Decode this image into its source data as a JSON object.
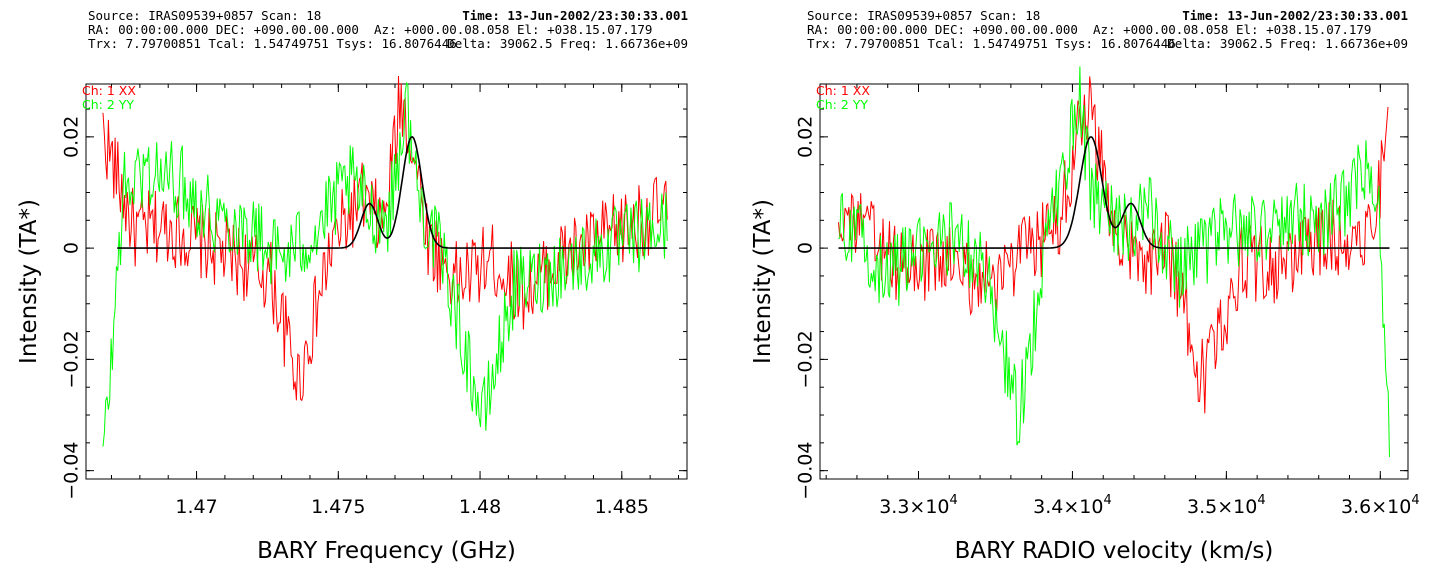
{
  "panels": [
    {
      "header": {
        "line1_left": "Source: IRAS09539+0857 Scan: 18",
        "line1_right": "Time: 13-Jun-2002/23:30:33.001",
        "line2_left": "RA: 00:00:00.000 DEC: +090.00.00.000  Az: +000.00.08.058 El: +038.15.07.179",
        "line3_left": "Trx: 7.79700851 Tcal: 1.54749751 Tsys: 16.8076446",
        "line3_right": "Delta: 39062.5 Freq: 1.66736e+09"
      }
    },
    {
      "header": {
        "line1_left": "Source: IRAS09539+0857 Scan: 18",
        "line1_right": "Time: 13-Jun-2002/23:30:33.001",
        "line2_left": "RA: 00:00:00.000 DEC: +090.00.00.000  Az: +000.00.08.058 El: +038.15.07.179",
        "line3_left": "Trx: 7.79700851 Tcal: 1.54749751 Tsys: 16.8076446",
        "line3_right": "Delta: 39062.5 Freq: 1.66736e+09"
      }
    }
  ],
  "chart_data": [
    {
      "type": "line",
      "xlabel": "BARY Frequency (GHz)",
      "ylabel": "Intensity (TA*)",
      "xlim": [
        1.4661,
        1.4873
      ],
      "ylim": [
        -0.0415,
        0.0295
      ],
      "x_ticks": [
        1.47,
        1.475,
        1.48,
        1.485
      ],
      "x_tick_labels": [
        "1.47",
        "1.475",
        "1.48",
        "1.485"
      ],
      "y_ticks": [
        -0.04,
        -0.02,
        0,
        0.02
      ],
      "y_tick_labels": [
        "−0.04",
        "−0.02",
        "0",
        "0.02"
      ],
      "legend_position": "top-left",
      "colors": {
        "ch1": "#ff0000",
        "ch2": "#00ff00",
        "fit": "#000000"
      },
      "series": [
        {
          "name": "Ch: 1 XX",
          "color": "#ff0000",
          "x": [
            1.4667,
            1.4678,
            1.469,
            1.4702,
            1.4714,
            1.4726,
            1.4736,
            1.4748,
            1.4758,
            1.4766,
            1.4772,
            1.4776,
            1.4782,
            1.4792,
            1.4804,
            1.4816,
            1.4828,
            1.484,
            1.4852,
            1.4866
          ],
          "y": [
            0.021,
            0.003,
            0.004,
            0.001,
            -0.002,
            -0.005,
            -0.024,
            0.001,
            0.009,
            0.004,
            0.027,
            0.019,
            0.001,
            -0.006,
            -0.002,
            -0.008,
            -0.002,
            0.001,
            0.004,
            0.007
          ]
        },
        {
          "name": "Ch: 2 YY",
          "color": "#00ff00",
          "x": [
            1.4667,
            1.467,
            1.4674,
            1.4682,
            1.4694,
            1.4706,
            1.4718,
            1.473,
            1.4742,
            1.4754,
            1.4762,
            1.4768,
            1.4774,
            1.4778,
            1.4788,
            1.4801,
            1.4812,
            1.4826,
            1.484,
            1.4855,
            1.4866
          ],
          "y": [
            -0.038,
            -0.02,
            0.01,
            0.014,
            0.012,
            0.006,
            0.004,
            -0.002,
            0.003,
            0.012,
            0.006,
            0.006,
            0.026,
            0.01,
            -0.004,
            -0.031,
            -0.007,
            -0.004,
            -0.001,
            0.002,
            0.004
          ]
        },
        {
          "name": "fit",
          "color": "#000000",
          "peaks": [
            {
              "center": 1.4761,
              "amp": 0.008,
              "sigma": 0.0003
            },
            {
              "center": 1.4776,
              "amp": 0.02,
              "sigma": 0.00035
            }
          ],
          "xrange": [
            1.4672,
            1.4866
          ]
        }
      ]
    },
    {
      "type": "line",
      "xlabel": "BARY RADIO velocity (km/s)",
      "ylabel": "Intensity (TA*)",
      "xlim": [
        32360,
        36180
      ],
      "ylim": [
        -0.0415,
        0.0295
      ],
      "x_ticks": [
        33000,
        34000,
        35000,
        36000
      ],
      "x_tick_labels": [
        "3.3×10",
        "3.4×10",
        "3.5×10",
        "3.6×10"
      ],
      "x_tick_exponent": "4",
      "y_ticks": [
        -0.04,
        -0.02,
        0,
        0.02
      ],
      "y_tick_labels": [
        "−0.04",
        "−0.02",
        "0",
        "0.02"
      ],
      "legend_position": "top-left",
      "colors": {
        "ch1": "#ff0000",
        "ch2": "#00ff00",
        "fit": "#000000"
      },
      "series": [
        {
          "name": "Ch: 1 XX",
          "color": "#ff0000",
          "x": [
            32480,
            32700,
            32900,
            33150,
            33400,
            33650,
            33900,
            34100,
            34250,
            34450,
            34600,
            34850,
            35100,
            35350,
            35600,
            35800,
            35950,
            36050
          ],
          "y": [
            0.007,
            0.002,
            -0.004,
            -0.002,
            -0.006,
            -0.002,
            0.004,
            0.027,
            0.006,
            -0.005,
            0.002,
            -0.024,
            -0.002,
            -0.004,
            0.002,
            0.002,
            0.004,
            0.021
          ]
        },
        {
          "name": "Ch: 2 YY",
          "color": "#00ff00",
          "x": [
            32480,
            32600,
            32800,
            33000,
            33200,
            33420,
            33650,
            33850,
            34050,
            34120,
            34300,
            34500,
            34700,
            34950,
            35200,
            35450,
            35700,
            35900,
            36000,
            36060
          ],
          "y": [
            0.005,
            0.002,
            -0.005,
            -0.001,
            0.002,
            -0.003,
            -0.031,
            0.004,
            0.027,
            0.01,
            0.004,
            0.006,
            -0.004,
            0.002,
            0.004,
            0.005,
            0.006,
            0.014,
            0.004,
            -0.038
          ]
        },
        {
          "name": "fit",
          "color": "#000000",
          "peaks": [
            {
              "center": 34120,
              "amp": 0.02,
              "sigma": 72
            },
            {
              "center": 34380,
              "amp": 0.008,
              "sigma": 60
            }
          ],
          "xrange": [
            32480,
            36060
          ]
        }
      ]
    }
  ]
}
